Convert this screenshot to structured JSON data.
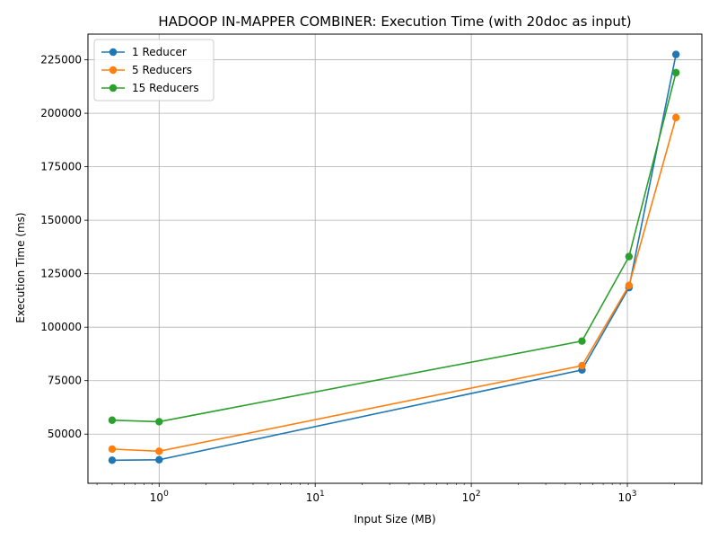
{
  "chart_data": {
    "type": "line",
    "title": "HADOOP IN-MAPPER COMBINER: Execution Time (with 20doc as input)",
    "xlabel": "Input Size (MB)",
    "ylabel": "Execution Time (ms)",
    "x_scale": "log",
    "xlim": [
      0.35,
      3000
    ],
    "ylim": [
      27000,
      237000
    ],
    "x_ticks": [
      {
        "value": 1,
        "base": "10",
        "exp": "0"
      },
      {
        "value": 10,
        "base": "10",
        "exp": "1"
      },
      {
        "value": 100,
        "base": "10",
        "exp": "2"
      },
      {
        "value": 1000,
        "base": "10",
        "exp": "3"
      }
    ],
    "y_ticks": [
      {
        "value": 50000,
        "label": "50000"
      },
      {
        "value": 75000,
        "label": "75000"
      },
      {
        "value": 100000,
        "label": "100000"
      },
      {
        "value": 125000,
        "label": "125000"
      },
      {
        "value": 150000,
        "label": "150000"
      },
      {
        "value": 175000,
        "label": "175000"
      },
      {
        "value": 200000,
        "label": "200000"
      },
      {
        "value": 225000,
        "label": "225000"
      }
    ],
    "grid": true,
    "legend_position": "top-left",
    "x": [
      0.5,
      1,
      512,
      1024,
      2048
    ],
    "series": [
      {
        "name": "1 Reducer",
        "color": "#1f77b4",
        "values": [
          37800,
          38000,
          80000,
          118500,
          227500
        ]
      },
      {
        "name": "5 Reducers",
        "color": "#ff7f0e",
        "values": [
          43000,
          42000,
          82000,
          119500,
          198000
        ]
      },
      {
        "name": "15 Reducers",
        "color": "#2ca02c",
        "values": [
          56500,
          55800,
          93500,
          133000,
          219000
        ]
      }
    ]
  }
}
